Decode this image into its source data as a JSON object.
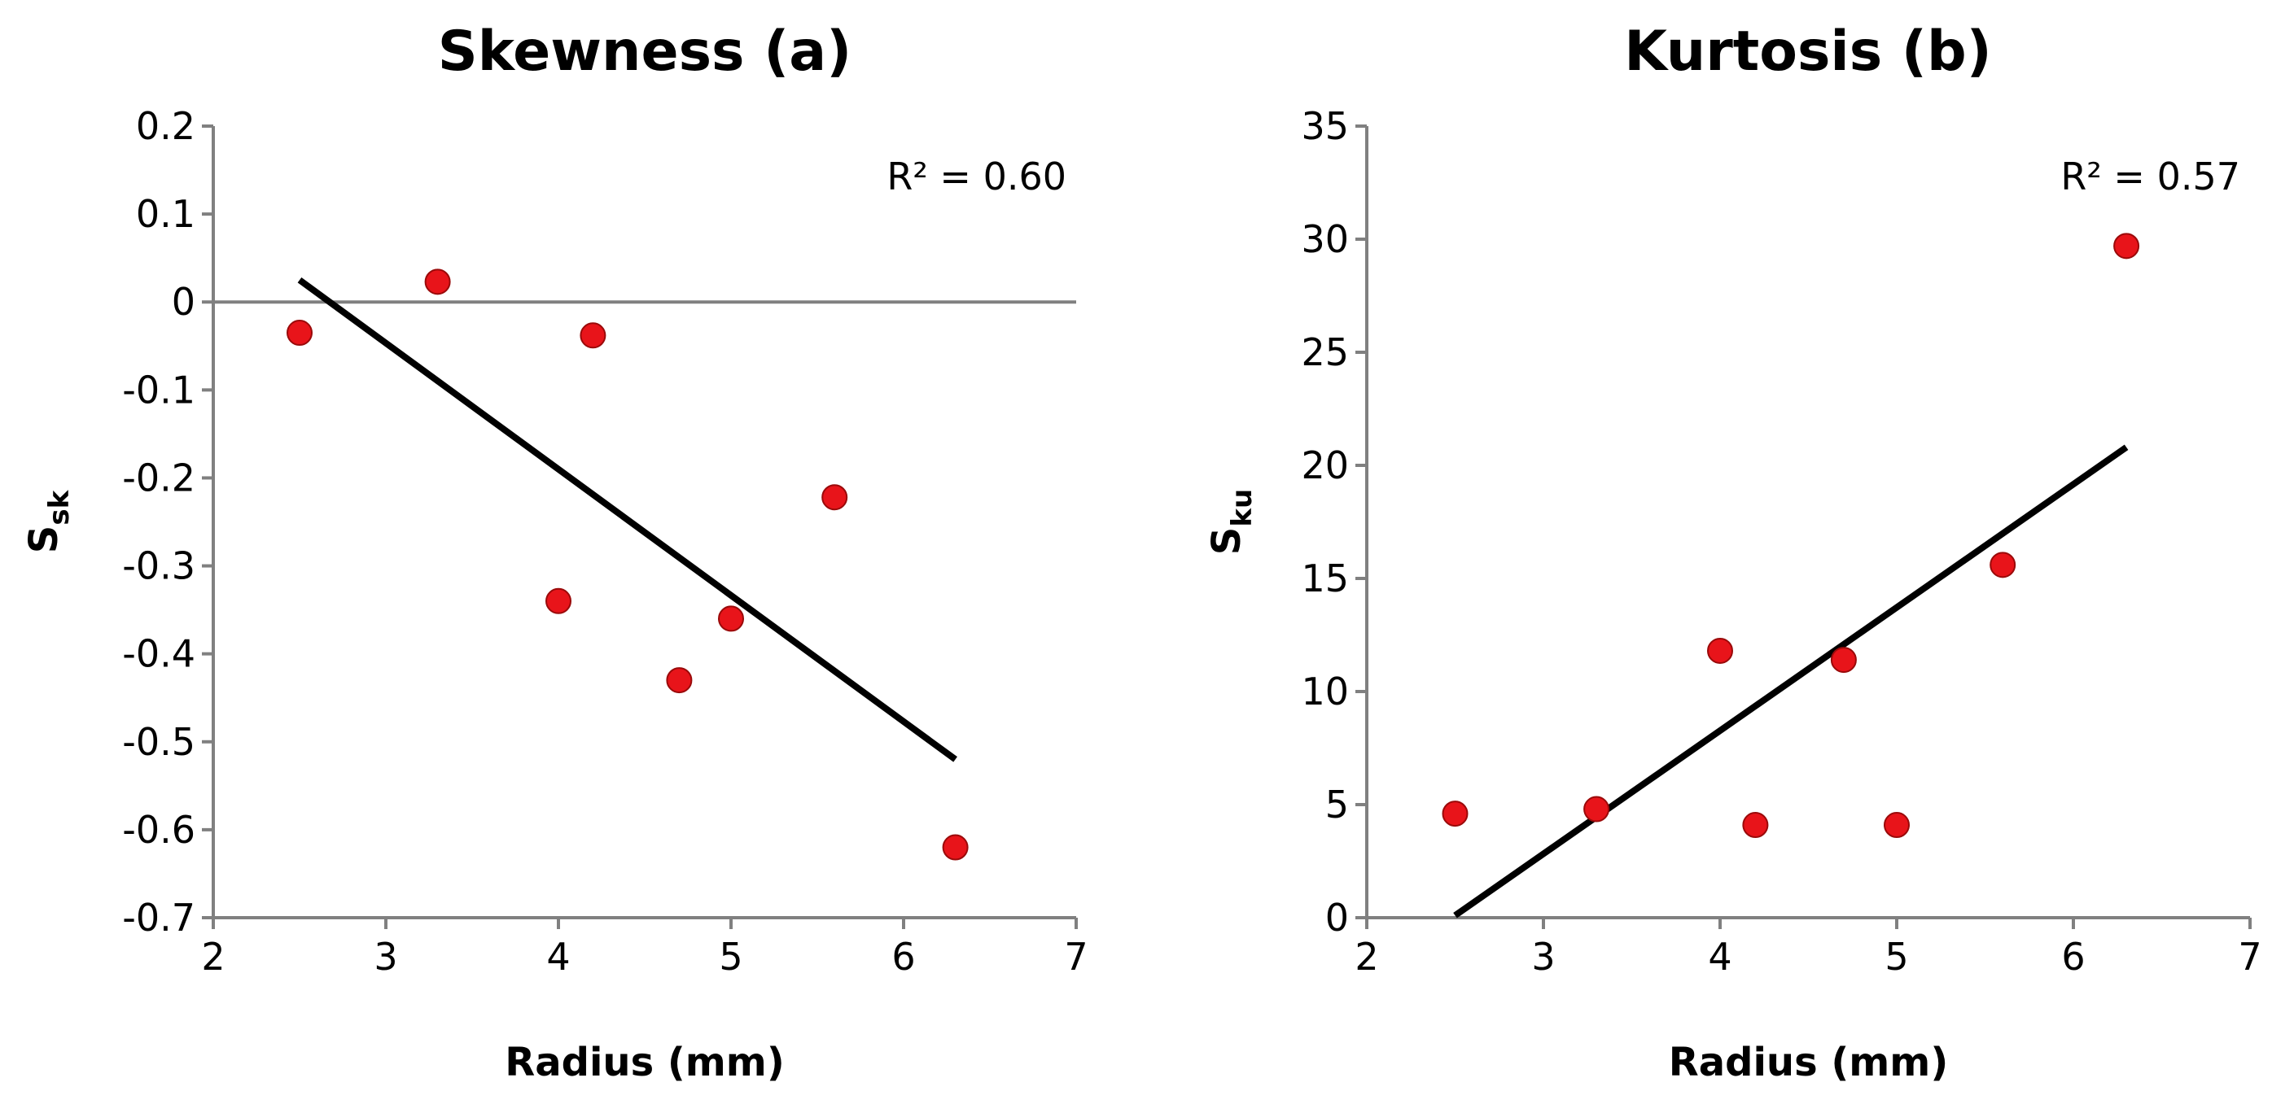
{
  "chart_data": [
    {
      "id": "skewness",
      "type": "scatter",
      "title": "Skewness (a)",
      "xlabel": "Radius (mm)",
      "ylabel": {
        "main": "S",
        "sub": "sk"
      },
      "xlim": [
        2,
        7
      ],
      "ylim": [
        -0.7,
        0.2
      ],
      "xticks": [
        2,
        3,
        4,
        5,
        6,
        7
      ],
      "yticks": [
        0.2,
        0.1,
        0,
        -0.1,
        -0.2,
        -0.3,
        -0.4,
        -0.5,
        -0.6,
        -0.7
      ],
      "ytick_labels": [
        "0.2",
        "0.1",
        "0",
        "-0.1",
        "-0.2",
        "-0.3",
        "-0.4",
        "-0.5",
        "-0.6",
        "-0.7"
      ],
      "xtick_labels": [
        "2",
        "3",
        "4",
        "5",
        "6",
        "7"
      ],
      "zero_line": true,
      "series": [
        {
          "name": "data",
          "x": [
            2.5,
            3.3,
            4.0,
            4.2,
            4.7,
            5.0,
            5.6,
            6.3
          ],
          "y": [
            -0.035,
            0.023,
            -0.34,
            -0.038,
            -0.43,
            -0.36,
            -0.222,
            -0.62
          ]
        }
      ],
      "trendline": {
        "x": [
          2.5,
          6.3
        ],
        "y": [
          0.025,
          -0.52
        ]
      },
      "annotation": {
        "text": "R² = 0.60"
      },
      "colors": {
        "marker": "#e8141a",
        "marker_edge": "#9a0a0a",
        "line": "#000000",
        "axis": "#808080"
      }
    },
    {
      "id": "kurtosis",
      "type": "scatter",
      "title": "Kurtosis (b)",
      "xlabel": "Radius (mm)",
      "ylabel": {
        "main": "S",
        "sub": "ku"
      },
      "xlim": [
        2,
        7
      ],
      "ylim": [
        0,
        35
      ],
      "xticks": [
        2,
        3,
        4,
        5,
        6,
        7
      ],
      "yticks": [
        35,
        30,
        25,
        20,
        15,
        10,
        5,
        0
      ],
      "ytick_labels": [
        "35",
        "30",
        "25",
        "20",
        "15",
        "10",
        "5",
        "0"
      ],
      "xtick_labels": [
        "2",
        "3",
        "4",
        "5",
        "6",
        "7"
      ],
      "zero_line": false,
      "series": [
        {
          "name": "data",
          "x": [
            2.5,
            3.3,
            4.0,
            4.2,
            4.7,
            5.0,
            5.6,
            6.3
          ],
          "y": [
            4.6,
            4.8,
            11.8,
            4.1,
            11.4,
            4.1,
            15.6,
            29.7
          ]
        }
      ],
      "trendline": {
        "x": [
          2.5,
          6.3
        ],
        "y": [
          0.1,
          20.8
        ]
      },
      "annotation": {
        "text": "R² = 0.57"
      },
      "colors": {
        "marker": "#e8141a",
        "marker_edge": "#9a0a0a",
        "line": "#000000",
        "axis": "#808080"
      }
    }
  ]
}
